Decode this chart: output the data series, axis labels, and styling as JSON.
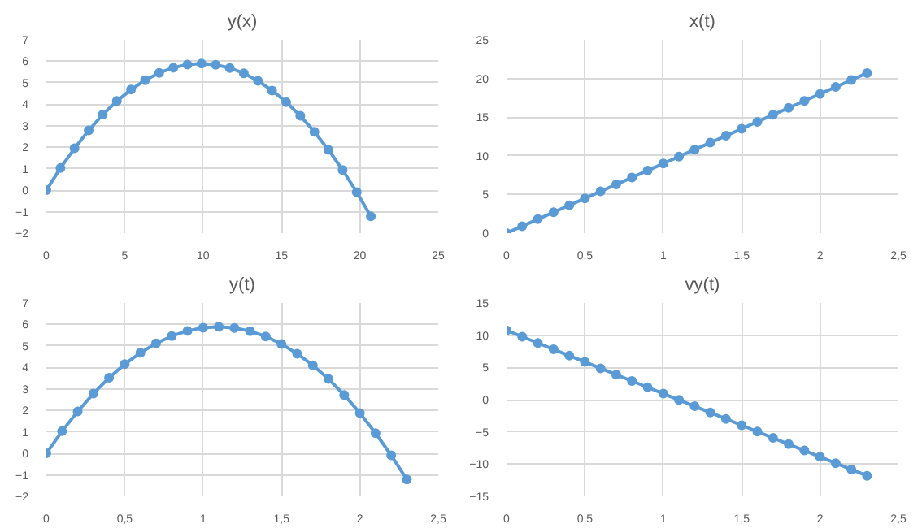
{
  "chart_data": [
    {
      "type": "line",
      "title": "y(x)",
      "x": [
        0,
        0.9,
        1.8,
        2.7,
        3.6,
        4.5,
        5.4,
        6.3,
        7.2,
        8.1,
        9,
        9.9,
        10.8,
        11.7,
        12.6,
        13.5,
        14.4,
        15.3,
        16.2,
        17.1,
        18,
        18.9,
        19.8,
        20.7
      ],
      "series": [
        {
          "color": "#5b9bd5",
          "values": [
            0,
            1.03,
            1.95,
            2.78,
            3.52,
            4.15,
            4.68,
            5.12,
            5.46,
            5.7,
            5.85,
            5.89,
            5.84,
            5.69,
            5.44,
            5.09,
            4.64,
            4.1,
            3.46,
            2.72,
            1.88,
            0.94,
            -0.09,
            -1.22
          ]
        }
      ],
      "xlim": [
        0,
        25
      ],
      "xticks": [
        0,
        5,
        10,
        15,
        20,
        25
      ],
      "ylim": [
        -2,
        7
      ],
      "yticks": [
        -2,
        -1,
        0,
        1,
        2,
        3,
        4,
        5,
        6,
        7
      ],
      "grid": true,
      "marker": "circle",
      "line_style": "solid"
    },
    {
      "type": "line",
      "title": "x(t)",
      "x": [
        0,
        0.1,
        0.2,
        0.3,
        0.4,
        0.5,
        0.6,
        0.7,
        0.8,
        0.9,
        1,
        1.1,
        1.2,
        1.3,
        1.4,
        1.5,
        1.6,
        1.7,
        1.8,
        1.9,
        2,
        2.1,
        2.2,
        2.3
      ],
      "series": [
        {
          "color": "#5b9bd5",
          "values": [
            0,
            0.9,
            1.8,
            2.7,
            3.6,
            4.5,
            5.4,
            6.3,
            7.2,
            8.1,
            9,
            9.9,
            10.8,
            11.7,
            12.6,
            13.5,
            14.4,
            15.3,
            16.2,
            17.1,
            18,
            18.9,
            19.8,
            20.7
          ]
        }
      ],
      "xlim": [
        0,
        2.5
      ],
      "xticks": [
        0,
        {
          "value": 0.5,
          "label": "0,5"
        },
        1,
        {
          "value": 1.5,
          "label": "1,5"
        },
        2,
        {
          "value": 2.5,
          "label": "2,5"
        }
      ],
      "ylim": [
        0,
        25
      ],
      "yticks": [
        0,
        5,
        10,
        15,
        20,
        25
      ],
      "grid": true,
      "marker": "circle",
      "line_style": "solid"
    },
    {
      "type": "line",
      "title": "y(t)",
      "x": [
        0,
        0.1,
        0.2,
        0.3,
        0.4,
        0.5,
        0.6,
        0.7,
        0.8,
        0.9,
        1,
        1.1,
        1.2,
        1.3,
        1.4,
        1.5,
        1.6,
        1.7,
        1.8,
        1.9,
        2,
        2.1,
        2.2,
        2.3
      ],
      "series": [
        {
          "color": "#5b9bd5",
          "values": [
            0,
            1.03,
            1.95,
            2.78,
            3.52,
            4.15,
            4.68,
            5.12,
            5.46,
            5.7,
            5.85,
            5.89,
            5.84,
            5.69,
            5.44,
            5.09,
            4.64,
            4.1,
            3.46,
            2.72,
            1.88,
            0.94,
            -0.09,
            -1.22
          ]
        }
      ],
      "xlim": [
        0,
        2.5
      ],
      "xticks": [
        0,
        {
          "value": 0.5,
          "label": "0,5"
        },
        1,
        {
          "value": 1.5,
          "label": "1,5"
        },
        2,
        {
          "value": 2.5,
          "label": "2,5"
        }
      ],
      "ylim": [
        -2,
        7
      ],
      "yticks": [
        -2,
        -1,
        0,
        1,
        2,
        3,
        4,
        5,
        6,
        7
      ],
      "grid": true,
      "marker": "circle",
      "line_style": "solid"
    },
    {
      "type": "line",
      "title": "vy(t)",
      "x": [
        0,
        0.1,
        0.2,
        0.3,
        0.4,
        0.5,
        0.6,
        0.7,
        0.8,
        0.9,
        1,
        1.1,
        1.2,
        1.3,
        1.4,
        1.5,
        1.6,
        1.7,
        1.8,
        1.9,
        2,
        2.1,
        2.2,
        2.3
      ],
      "series": [
        {
          "color": "#5b9bd5",
          "values": [
            10.75,
            9.77,
            8.79,
            7.81,
            6.83,
            5.85,
            4.86,
            3.88,
            2.9,
            1.92,
            0.94,
            -0.04,
            -1.02,
            -2.0,
            -2.98,
            -3.97,
            -4.95,
            -5.93,
            -6.91,
            -7.89,
            -8.87,
            -9.85,
            -10.83,
            -11.81
          ]
        }
      ],
      "xlim": [
        0,
        2.5
      ],
      "xticks": [
        0,
        {
          "value": 0.5,
          "label": "0,5"
        },
        1,
        {
          "value": 1.5,
          "label": "1,5"
        },
        2,
        {
          "value": 2.5,
          "label": "2,5"
        }
      ],
      "ylim": [
        -15,
        15
      ],
      "yticks": [
        -15,
        -10,
        -5,
        0,
        5,
        10,
        15
      ],
      "grid": true,
      "marker": "circle",
      "line_style": "solid"
    }
  ]
}
